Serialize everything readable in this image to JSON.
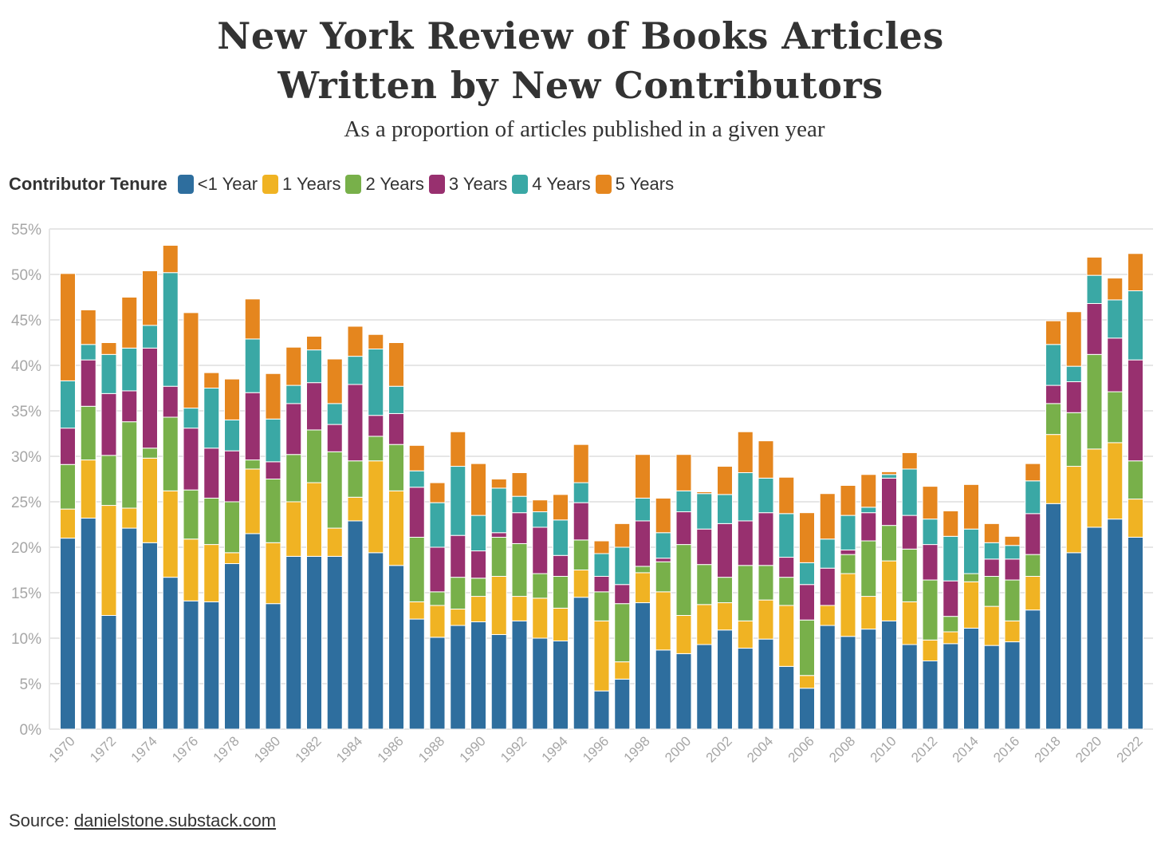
{
  "title_line1": "New York Review of Books Articles",
  "title_line2": "Written by New Contributors",
  "subtitle": "As a proportion of articles published in a given year",
  "legend": {
    "title": "Contributor Tenure",
    "items": [
      {
        "label": "<1 Year",
        "color": "#2E6E9E"
      },
      {
        "label": "1 Years",
        "color": "#F0B323"
      },
      {
        "label": "2 Years",
        "color": "#78B04A"
      },
      {
        "label": "3 Years",
        "color": "#98306F"
      },
      {
        "label": "4 Years",
        "color": "#3AA8A5"
      },
      {
        "label": "5 Years",
        "color": "#E5861E"
      }
    ]
  },
  "source": {
    "prefix": "Source: ",
    "link": "danielstone.substack.com"
  },
  "chart_data": {
    "type": "bar",
    "stacked": true,
    "ylim": [
      0,
      55
    ],
    "yticks": [
      "0%",
      "5%",
      "10%",
      "15%",
      "20%",
      "25%",
      "30%",
      "35%",
      "40%",
      "45%",
      "50%",
      "55%"
    ],
    "categories": [
      "1970",
      "1971",
      "1972",
      "1973",
      "1974",
      "1975",
      "1976",
      "1977",
      "1978",
      "1979",
      "1980",
      "1981",
      "1982",
      "1983",
      "1984",
      "1985",
      "1986",
      "1987",
      "1988",
      "1989",
      "1990",
      "1991",
      "1992",
      "1993",
      "1994",
      "1995",
      "1996",
      "1997",
      "1998",
      "1999",
      "2000",
      "2001",
      "2002",
      "2003",
      "2004",
      "2005",
      "2006",
      "2007",
      "2008",
      "2009",
      "2010",
      "2011",
      "2012",
      "2013",
      "2014",
      "2015",
      "2016",
      "2017",
      "2018",
      "2019",
      "2020",
      "2021",
      "2022"
    ],
    "xtick_labels": [
      "1970",
      "",
      "1972",
      "",
      "1974",
      "",
      "1976",
      "",
      "1978",
      "",
      "1980",
      "",
      "1982",
      "",
      "1984",
      "",
      "1986",
      "",
      "1988",
      "",
      "1990",
      "",
      "1992",
      "",
      "1994",
      "",
      "1996",
      "",
      "1998",
      "",
      "2000",
      "",
      "2002",
      "",
      "2004",
      "",
      "2006",
      "",
      "2008",
      "",
      "2010",
      "",
      "2012",
      "",
      "2014",
      "",
      "2016",
      "",
      "2018",
      "",
      "2020",
      "",
      "2022"
    ],
    "series": [
      {
        "name": "<1 Year",
        "values": [
          21.0,
          23.2,
          12.5,
          22.1,
          20.5,
          16.7,
          14.1,
          14.0,
          18.2,
          21.5,
          13.8,
          19.0,
          19.0,
          19.0,
          22.9,
          19.4,
          18.0,
          12.1,
          10.1,
          11.4,
          11.8,
          10.4,
          11.9,
          10.0,
          9.7,
          14.5,
          4.2,
          5.5,
          13.9,
          8.7,
          8.3,
          9.3,
          10.9,
          8.9,
          9.9,
          6.9,
          4.5,
          11.4,
          10.2,
          11.0,
          11.9,
          9.3,
          7.5,
          9.4,
          11.1,
          9.2,
          9.6,
          13.1,
          24.8,
          19.4,
          22.2,
          23.1,
          21.1
        ]
      },
      {
        "name": "1 Years",
        "values": [
          3.2,
          6.4,
          12.1,
          2.2,
          9.3,
          9.5,
          6.8,
          6.3,
          1.2,
          7.1,
          6.7,
          6.0,
          8.1,
          3.1,
          2.6,
          10.1,
          8.2,
          1.9,
          3.5,
          1.8,
          2.8,
          6.4,
          2.7,
          4.4,
          3.6,
          3.0,
          7.7,
          1.9,
          3.3,
          6.4,
          4.2,
          4.4,
          3.0,
          3.0,
          4.3,
          6.7,
          1.4,
          2.2,
          6.9,
          3.6,
          6.6,
          4.7,
          2.3,
          1.3,
          5.1,
          4.3,
          2.3,
          3.7,
          7.6,
          9.5,
          8.6,
          8.4,
          4.2
        ]
      },
      {
        "name": "2 Years",
        "values": [
          4.9,
          5.9,
          5.5,
          9.5,
          1.1,
          8.1,
          5.4,
          5.1,
          5.6,
          1.0,
          7.0,
          5.2,
          5.8,
          8.4,
          4.0,
          2.7,
          5.1,
          7.1,
          1.5,
          3.5,
          2.0,
          4.3,
          5.8,
          2.7,
          3.5,
          3.3,
          3.2,
          6.4,
          0.7,
          3.3,
          7.8,
          4.4,
          2.8,
          6.1,
          3.8,
          3.1,
          6.1,
          0.0,
          2.1,
          6.1,
          3.9,
          5.8,
          6.6,
          1.7,
          0.9,
          3.3,
          4.5,
          2.4,
          3.4,
          5.9,
          10.4,
          5.6,
          4.2
        ]
      },
      {
        "name": "3 Years",
        "values": [
          4.0,
          5.1,
          6.8,
          3.4,
          11.0,
          3.4,
          6.8,
          5.5,
          5.6,
          7.4,
          1.9,
          5.6,
          5.2,
          3.0,
          8.4,
          2.3,
          3.4,
          5.5,
          4.9,
          4.6,
          3.0,
          0.5,
          3.4,
          5.1,
          2.3,
          4.1,
          1.7,
          2.1,
          5.0,
          0.4,
          3.6,
          3.9,
          5.9,
          4.9,
          5.8,
          2.2,
          3.9,
          4.1,
          0.5,
          3.1,
          5.2,
          3.7,
          3.9,
          3.9,
          0.0,
          1.9,
          2.3,
          4.5,
          2.0,
          3.4,
          5.6,
          5.9,
          11.1
        ]
      },
      {
        "name": "4 Years",
        "values": [
          5.2,
          1.7,
          4.3,
          4.7,
          2.5,
          12.5,
          2.2,
          6.6,
          3.4,
          5.9,
          4.7,
          2.0,
          3.6,
          2.3,
          3.1,
          7.3,
          3.0,
          1.8,
          4.9,
          7.6,
          3.9,
          4.9,
          1.8,
          1.7,
          3.9,
          2.2,
          2.5,
          4.1,
          2.5,
          2.8,
          2.3,
          3.9,
          3.2,
          5.3,
          3.8,
          4.8,
          2.4,
          3.2,
          3.8,
          0.6,
          0.4,
          5.1,
          2.8,
          4.9,
          4.9,
          1.8,
          1.5,
          3.6,
          4.5,
          1.7,
          3.1,
          4.2,
          7.6
        ]
      },
      {
        "name": "5 Years",
        "values": [
          11.8,
          3.8,
          1.3,
          5.6,
          6.0,
          3.0,
          10.5,
          1.7,
          4.5,
          4.4,
          5.0,
          4.2,
          1.5,
          4.9,
          3.3,
          1.6,
          4.8,
          2.8,
          2.2,
          3.8,
          5.7,
          1.0,
          2.6,
          1.3,
          2.8,
          4.2,
          1.4,
          2.6,
          4.8,
          3.8,
          4.0,
          0.2,
          3.1,
          4.5,
          4.1,
          4.0,
          5.5,
          5.0,
          3.3,
          3.6,
          0.3,
          1.8,
          3.6,
          2.8,
          4.9,
          2.1,
          1.0,
          1.9,
          2.6,
          6.0,
          2.0,
          2.4,
          4.1
        ]
      }
    ]
  }
}
